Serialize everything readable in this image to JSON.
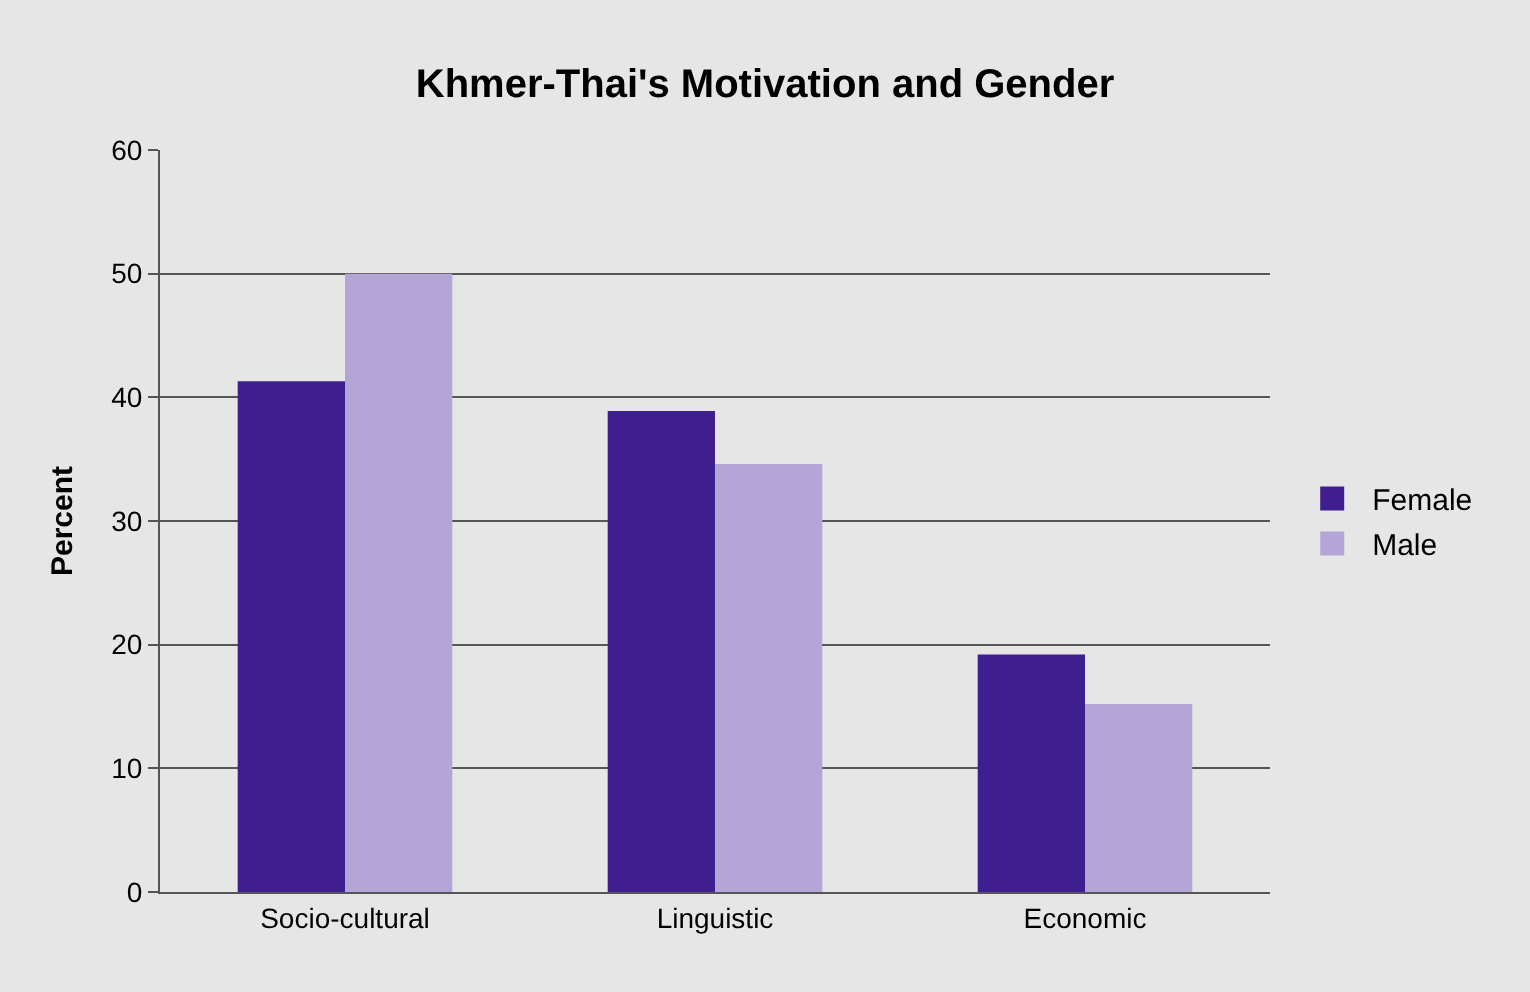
{
  "chart_data": {
    "type": "bar",
    "title": "Khmer-Thai's Motivation and Gender",
    "ylabel": "Percent",
    "categories": [
      "Socio-cultural",
      "Linguistic",
      "Economic"
    ],
    "series": [
      {
        "name": "Female",
        "color": "#3f1f8f",
        "values": [
          41.3,
          38.9,
          19.2
        ]
      },
      {
        "name": "Male",
        "color": "#b3a6d6",
        "values": [
          50.0,
          34.6,
          15.2
        ]
      }
    ],
    "ylim": [
      0,
      60
    ],
    "yticks": [
      0,
      10,
      20,
      30,
      40,
      50,
      60
    ],
    "grid": "y",
    "legend": "right"
  }
}
